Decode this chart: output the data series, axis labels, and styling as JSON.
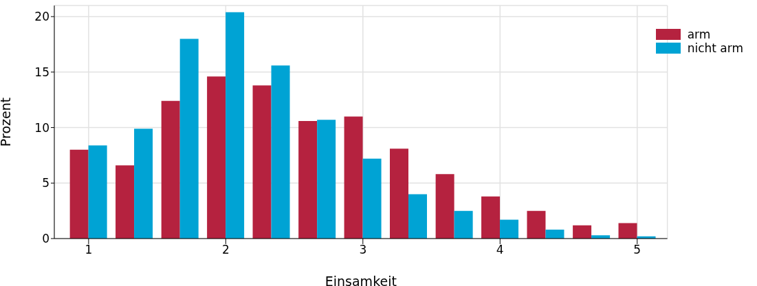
{
  "chart_data": {
    "type": "bar",
    "xlabel": "Einsamkeit",
    "ylabel": "Prozent",
    "x": [
      1,
      1.333,
      1.667,
      2,
      2.333,
      2.667,
      3,
      3.333,
      3.667,
      4,
      4.333,
      4.667,
      5
    ],
    "series": [
      {
        "name": "arm",
        "color": "#b5223f",
        "values": [
          8.0,
          6.6,
          12.4,
          14.6,
          13.8,
          10.6,
          11.0,
          8.1,
          5.8,
          3.8,
          2.5,
          1.2,
          1.4
        ]
      },
      {
        "name": "nicht arm",
        "color": "#00a3d4",
        "values": [
          8.4,
          9.9,
          18.0,
          20.4,
          15.6,
          10.7,
          7.2,
          4.0,
          2.5,
          1.7,
          0.8,
          0.3,
          0.2
        ]
      }
    ],
    "xlim": [
      0.75,
      5.22
    ],
    "xticks": [
      1,
      2,
      3,
      4,
      5
    ],
    "ylim": [
      0,
      21
    ],
    "yticks": [
      0,
      5,
      10,
      15,
      20
    ],
    "grid": true,
    "legend": "top right"
  }
}
